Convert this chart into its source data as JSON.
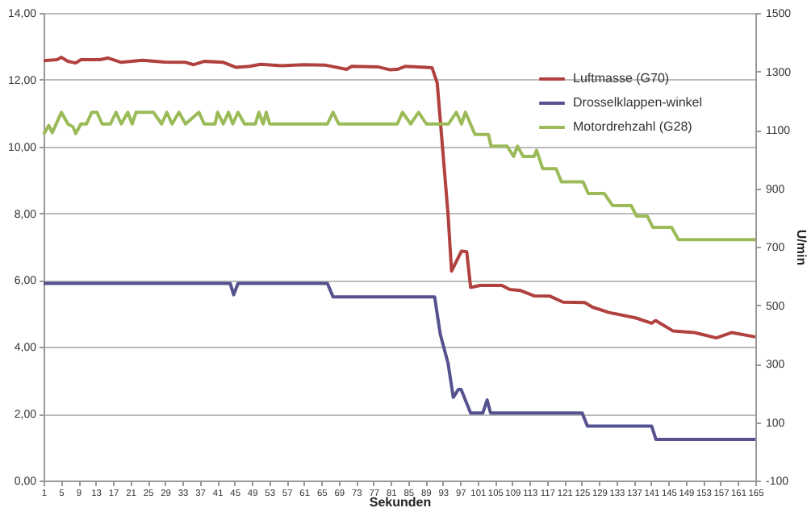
{
  "chart_data": {
    "type": "line",
    "xlabel": "Sekunden",
    "y2label": "U/min",
    "xlim": [
      1,
      165
    ],
    "xticks": [
      1,
      5,
      9,
      13,
      17,
      21,
      25,
      29,
      33,
      37,
      41,
      45,
      49,
      53,
      57,
      61,
      65,
      69,
      73,
      77,
      81,
      85,
      89,
      93,
      97,
      101,
      105,
      109,
      113,
      117,
      121,
      125,
      129,
      133,
      137,
      141,
      145,
      149,
      153,
      157,
      161,
      165
    ],
    "ylim": [
      0,
      14
    ],
    "yticks": [
      {
        "value": 0,
        "label": "0,00"
      },
      {
        "value": 2,
        "label": "2,00"
      },
      {
        "value": 4,
        "label": "4,00"
      },
      {
        "value": 6,
        "label": "6,00"
      },
      {
        "value": 8,
        "label": "8,00"
      },
      {
        "value": 10,
        "label": "10,00"
      },
      {
        "value": 12,
        "label": "12,00"
      },
      {
        "value": 14,
        "label": "14,00"
      }
    ],
    "y2lim": [
      -100,
      1500
    ],
    "y2ticks": [
      -100,
      100,
      300,
      500,
      700,
      900,
      1100,
      1300,
      1500
    ],
    "grid": "y",
    "legend": "top right",
    "series": [
      {
        "name": "Luftmasse (G70)",
        "color": "#b0413e",
        "x": [
          1,
          4.1,
          5.1,
          6.6,
          8.4,
          9.6,
          14,
          15.8,
          18.9,
          23.8,
          28.8,
          33.7,
          35.6,
          38,
          42.4,
          45.4,
          48.5,
          51,
          55.9,
          60.9,
          65.8,
          70.8,
          72,
          78.2,
          80.7,
          82.5,
          84.3,
          90.5,
          91.7,
          94.2,
          95,
          97.3,
          98.5,
          99.4,
          101.6,
          106.6,
          108.4,
          110.9,
          114,
          117.7,
          120.7,
          125.7,
          127.5,
          131.3,
          137.4,
          141.1,
          142,
          146,
          151,
          156,
          159.6,
          165
        ],
        "values": [
          12.57,
          12.6,
          12.67,
          12.55,
          12.5,
          12.6,
          12.6,
          12.65,
          12.52,
          12.58,
          12.53,
          12.52,
          12.45,
          12.55,
          12.52,
          12.37,
          12.4,
          12.46,
          12.42,
          12.45,
          12.44,
          12.31,
          12.4,
          12.38,
          12.3,
          12.31,
          12.4,
          12.36,
          11.9,
          7.96,
          6.27,
          6.87,
          6.85,
          5.78,
          5.84,
          5.84,
          5.72,
          5.69,
          5.53,
          5.52,
          5.34,
          5.33,
          5.19,
          5.03,
          4.87,
          4.71,
          4.79,
          4.48,
          4.43,
          4.27,
          4.43,
          4.3
        ]
      },
      {
        "name": "Drosselklappen-winkel",
        "color": "#55528f",
        "x": [
          1,
          44,
          44.8,
          45.8,
          66.4,
          67.7,
          91.1,
          92.4,
          94.2,
          95.4,
          96.6,
          97.2,
          99.4,
          102.2,
          103.2,
          104,
          125.1,
          126.3,
          141.1,
          142.1,
          165
        ],
        "values": [
          5.9,
          5.9,
          5.56,
          5.9,
          5.9,
          5.5,
          5.5,
          4.38,
          3.51,
          2.49,
          2.73,
          2.73,
          2.02,
          2.02,
          2.41,
          2.02,
          2.02,
          1.63,
          1.63,
          1.23,
          1.23
        ]
      },
      {
        "name": "Motordrehzahl (G28)",
        "color": "#9bbb59",
        "axis": "y2",
        "x": [
          1,
          2.2,
          3,
          5.1,
          6.6,
          7.8,
          8.4,
          9.6,
          10.9,
          12.1,
          13.3,
          14.5,
          16.4,
          17.7,
          18.9,
          20.4,
          21.4,
          22.3,
          26.3,
          28.2,
          29.4,
          30.6,
          32.2,
          33.7,
          36.8,
          38,
          40.5,
          41.1,
          42.4,
          43.6,
          44.6,
          45.8,
          47.3,
          49.8,
          50.6,
          51.6,
          52.3,
          53.1,
          66.4,
          67.7,
          69,
          82.5,
          83.7,
          85.6,
          87.4,
          89.2,
          94.3,
          96.1,
          97.3,
          98.2,
          100.4,
          103.5,
          104.1,
          107.8,
          109.3,
          110.2,
          111.5,
          114,
          114.6,
          116,
          119.1,
          120.3,
          125.3,
          126.5,
          130.2,
          132.1,
          136.4,
          137.6,
          140.1,
          141.4,
          145.7,
          147.3,
          165
        ],
        "values": [
          1084,
          1115,
          1090,
          1160,
          1120,
          1110,
          1087,
          1120,
          1120,
          1160,
          1160,
          1120,
          1120,
          1160,
          1120,
          1160,
          1120,
          1160,
          1160,
          1120,
          1160,
          1120,
          1160,
          1120,
          1160,
          1120,
          1120,
          1160,
          1120,
          1160,
          1120,
          1160,
          1120,
          1120,
          1160,
          1120,
          1160,
          1120,
          1120,
          1160,
          1120,
          1120,
          1160,
          1120,
          1160,
          1120,
          1120,
          1160,
          1120,
          1160,
          1084,
          1084,
          1044,
          1044,
          1009,
          1044,
          1009,
          1009,
          1030,
          967,
          967,
          922,
          922,
          882,
          882,
          841,
          841,
          805,
          805,
          766,
          766,
          724,
          724
        ]
      }
    ]
  }
}
